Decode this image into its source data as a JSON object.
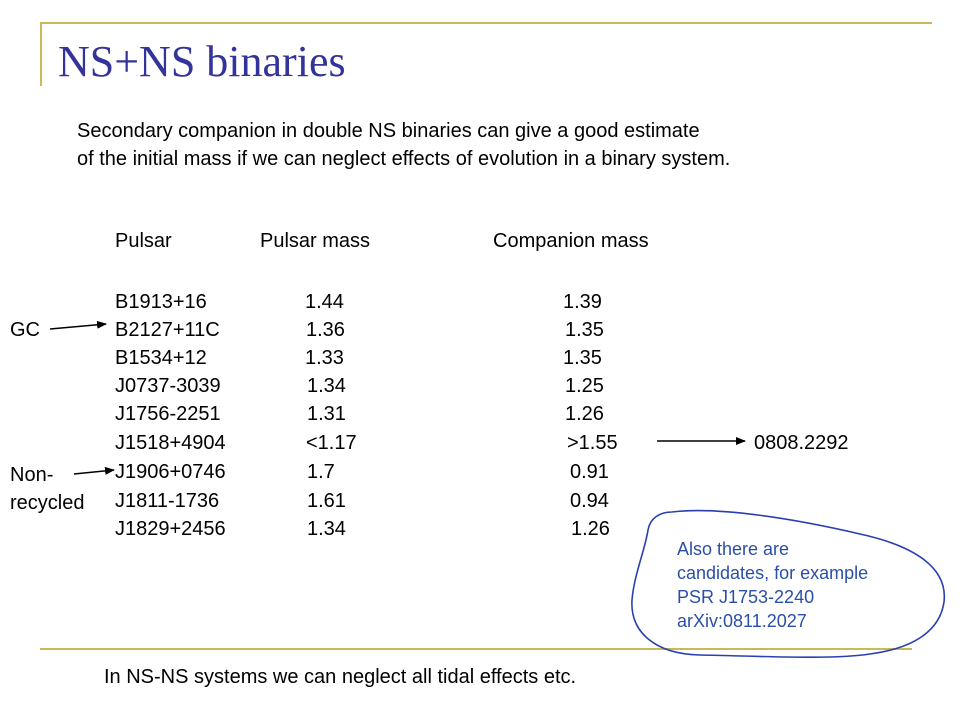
{
  "slide": {
    "title": "NS+NS binaries",
    "intro": [
      "Secondary companion in double NS binaries can give a good estimate",
      "of the initial mass if we can neglect effects of evolution in a binary system."
    ],
    "table": {
      "headers": [
        "Pulsar",
        "Pulsar mass",
        "Companion mass"
      ],
      "rows": [
        {
          "pulsar": "B1913+16",
          "pulsar_mass": "1.44",
          "companion_mass": "1.39"
        },
        {
          "pulsar": "B2127+11C",
          "pulsar_mass": "1.36",
          "companion_mass": "1.35"
        },
        {
          "pulsar": "B1534+12",
          "pulsar_mass": "1.33",
          "companion_mass": "1.35"
        },
        {
          "pulsar": "J0737-3039",
          "pulsar_mass": "1.34",
          "companion_mass": "1.25"
        },
        {
          "pulsar": "J1756-2251",
          "pulsar_mass": "1.31",
          "companion_mass": "1.26"
        },
        {
          "pulsar": "J1518+4904",
          "pulsar_mass": "<1.17",
          "companion_mass": ">1.55"
        },
        {
          "pulsar": "J1906+0746",
          "pulsar_mass": "1.7",
          "companion_mass": "0.91"
        },
        {
          "pulsar": "J1811-1736",
          "pulsar_mass": "1.61",
          "companion_mass": "0.94"
        },
        {
          "pulsar": "J1829+2456",
          "pulsar_mass": "1.34",
          "companion_mass": "1.26"
        }
      ]
    },
    "annotations": {
      "gc": "GC",
      "non_recycled": [
        "Non-",
        "recycled"
      ],
      "ref": "0808.2292"
    },
    "note": [
      "Also there are",
      "candidates, for example",
      "PSR J1753-2240",
      "arXiv:0811.2027"
    ],
    "footer": "In NS-NS systems we can neglect all tidal effects etc.",
    "colors": {
      "title": "#333399",
      "accent_line": "#c8b95a",
      "note_ink": "#2a4fa8"
    }
  }
}
